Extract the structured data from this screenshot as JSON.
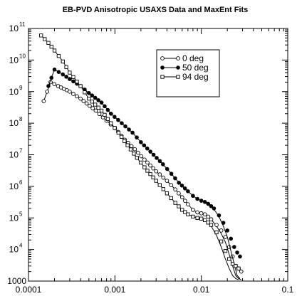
{
  "chart_data": {
    "type": "scatter",
    "title": "EB-PVD  Anisotropic  USAXS  Data   and  MaxEnt  Fits",
    "xlabel": "",
    "ylabel": "",
    "xscale": "log",
    "yscale": "log",
    "xlim": [
      0.0001,
      0.1
    ],
    "ylim": [
      1000,
      100000000000
    ],
    "x_ticks": [
      {
        "value": 0.0001,
        "label": "0.0001"
      },
      {
        "value": 0.001,
        "label": "0.001"
      },
      {
        "value": 0.01,
        "label": "0.01"
      },
      {
        "value": 0.1,
        "label": "0.1"
      }
    ],
    "y_ticks": [
      {
        "value": 1000,
        "base": "1000",
        "exp": ""
      },
      {
        "value": 10000,
        "base": "10",
        "exp": "4"
      },
      {
        "value": 100000,
        "base": "10",
        "exp": "5"
      },
      {
        "value": 1000000,
        "base": "10",
        "exp": "6"
      },
      {
        "value": 10000000,
        "base": "10",
        "exp": "7"
      },
      {
        "value": 100000000,
        "base": "10",
        "exp": "8"
      },
      {
        "value": 1000000000,
        "base": "10",
        "exp": "9"
      },
      {
        "value": 10000000000,
        "base": "10",
        "exp": "10"
      },
      {
        "value": 100000000000,
        "base": "10",
        "exp": "11"
      }
    ],
    "grid": false,
    "legend_position": "top-right",
    "series": [
      {
        "name": "0 deg",
        "marker": "circle",
        "x": [
          0.00015,
          0.00018,
          0.00022,
          0.0003,
          0.0004,
          0.0006,
          0.0008,
          0.001,
          0.0013,
          0.0017,
          0.0022,
          0.003,
          0.004,
          0.005,
          0.006,
          0.007,
          0.008,
          0.009,
          0.01,
          0.011,
          0.012,
          0.013,
          0.015,
          0.017,
          0.019,
          0.021,
          0.023,
          0.025,
          0.027,
          0.029
        ],
        "y": [
          500000000,
          2000000000,
          1500000000,
          1000000000,
          600000000,
          250000000,
          120000000,
          70000000,
          30000000,
          15000000,
          7000000,
          3000000,
          1500000,
          800000,
          450000,
          270000,
          180000,
          150000,
          140000,
          130000,
          110000,
          90000,
          60000,
          40000,
          25000,
          12000,
          6000,
          3000,
          2500,
          2000
        ],
        "fit_y": [
          500000000,
          2000000000,
          1500000000,
          1000000000,
          600000000,
          250000000,
          120000000,
          70000000,
          30000000,
          15000000,
          7000000,
          3000000,
          1500000,
          800000,
          450000,
          270000,
          180000,
          150000,
          140000,
          130000,
          110000,
          90000,
          55000,
          32000,
          17000,
          7000,
          3000,
          1500,
          1200,
          1100
        ]
      },
      {
        "name": "50 deg",
        "marker": "filled-circle",
        "x": [
          0.00017,
          0.0002,
          0.00025,
          0.0003,
          0.0004,
          0.0005,
          0.0007,
          0.0009,
          0.0012,
          0.0016,
          0.002,
          0.0028,
          0.0036,
          0.0045,
          0.0055,
          0.007,
          0.008,
          0.009,
          0.01,
          0.011,
          0.012,
          0.014,
          0.016,
          0.018,
          0.02,
          0.022,
          0.024,
          0.026,
          0.028
        ],
        "y": [
          1500000000,
          5000000000,
          3500000000,
          2500000000,
          1500000000,
          900000000,
          450000000,
          200000000,
          100000000,
          50000000,
          25000000,
          10000000,
          5000000,
          2500000,
          1300000,
          700000,
          500000,
          400000,
          350000,
          320000,
          280000,
          200000,
          120000,
          70000,
          40000,
          22000,
          12000,
          8000,
          6000
        ],
        "fit_y": [
          1500000000,
          5000000000,
          3500000000,
          2500000000,
          1500000000,
          900000000,
          450000000,
          200000000,
          100000000,
          50000000,
          25000000,
          10000000,
          5000000,
          2500000,
          1300000,
          700000,
          500000,
          400000,
          350000,
          320000,
          280000,
          190000,
          110000,
          55000,
          25000,
          9000,
          3500,
          1500,
          1200
        ]
      },
      {
        "name": "94 deg",
        "marker": "square",
        "x": [
          0.00014,
          0.00017,
          0.0002,
          0.00025,
          0.0003,
          0.0004,
          0.0005,
          0.0007,
          0.0009,
          0.0011,
          0.0014,
          0.0018,
          0.0022,
          0.003,
          0.004,
          0.005,
          0.006,
          0.007,
          0.008,
          0.009,
          0.01,
          0.011,
          0.013,
          0.015,
          0.017,
          0.019,
          0.021,
          0.023,
          0.025,
          0.027
        ],
        "y": [
          60000000000,
          35000000000,
          20000000000,
          9000000000,
          4000000000,
          1500000000,
          600000000,
          250000000,
          100000000,
          50000000,
          20000000,
          8000000,
          4000000,
          1500000,
          600000,
          300000,
          180000,
          130000,
          110000,
          100000,
          95000,
          85000,
          60000,
          35000,
          18000,
          9000,
          5000,
          3500,
          3000,
          2500
        ],
        "fit_y": [
          60000000000,
          35000000000,
          20000000000,
          9000000000,
          4000000000,
          1500000000,
          600000000,
          250000000,
          100000000,
          50000000,
          20000000,
          8000000,
          4000000,
          1500000,
          600000,
          300000,
          180000,
          130000,
          110000,
          100000,
          95000,
          85000,
          55000,
          28000,
          12000,
          5000,
          2500,
          1500,
          1200,
          1100
        ]
      }
    ]
  }
}
